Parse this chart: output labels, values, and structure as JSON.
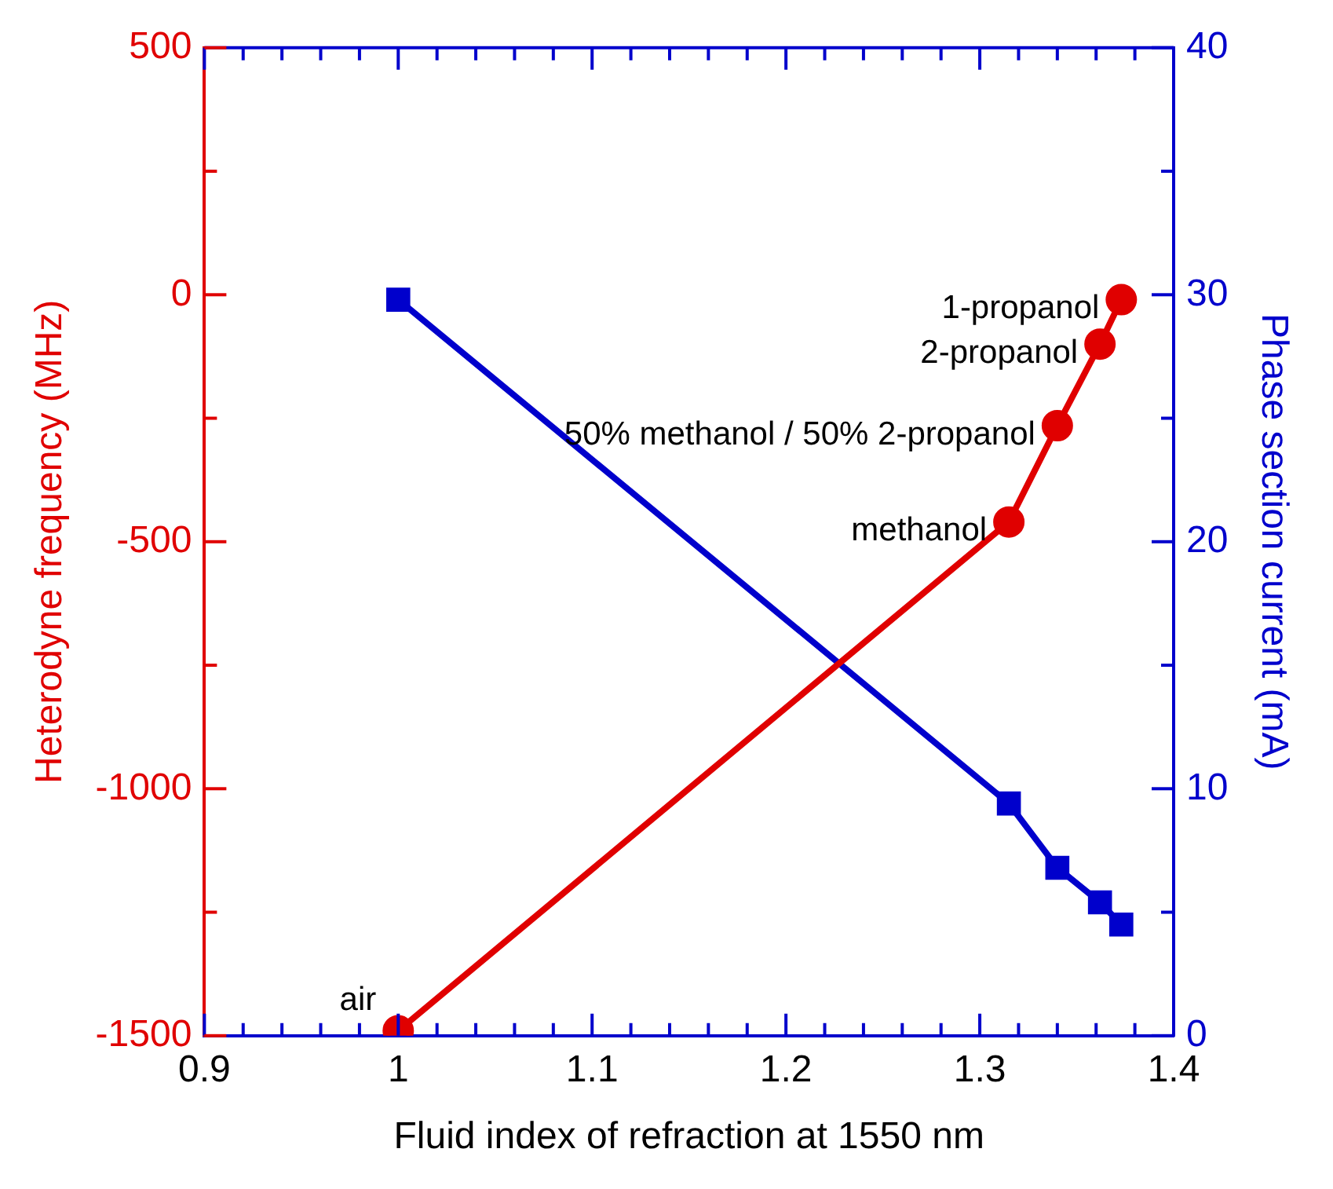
{
  "chart_data": {
    "type": "line",
    "xlabel": "Fluid index of refraction at 1550 nm",
    "ylabel": "Heterodyne frequency (MHz)",
    "y2label": "Phase section current (mA)",
    "x": [
      1.0,
      1.315,
      1.34,
      1.362,
      1.373
    ],
    "series": [
      {
        "name": null,
        "color": "#e00000",
        "values": [
          -1490,
          -460,
          -265,
          -100,
          -10
        ],
        "marker": "circle"
      },
      {
        "name": null,
        "color": "#0000cc",
        "values": [
          29.8,
          9.4,
          6.8,
          5.4,
          4.5
        ],
        "marker": "square",
        "axis": "y2"
      }
    ],
    "xlim": [
      0.9,
      1.4
    ],
    "xticks": [
      0.9,
      1,
      1.1,
      1.2,
      1.3,
      1.4,
      {
        "value": 0.92,
        "label": null
      },
      {
        "value": 0.94,
        "label": null
      },
      {
        "value": 0.96,
        "label": null
      },
      {
        "value": 0.98,
        "label": null
      },
      {
        "value": 1.02,
        "label": null
      },
      {
        "value": 1.04,
        "label": null
      },
      {
        "value": 1.06,
        "label": null
      },
      {
        "value": 1.08,
        "label": null
      },
      {
        "value": 1.12,
        "label": null
      },
      {
        "value": 1.14,
        "label": null
      },
      {
        "value": 1.16,
        "label": null
      },
      {
        "value": 1.18,
        "label": null
      },
      {
        "value": 1.22,
        "label": null
      },
      {
        "value": 1.24,
        "label": null
      },
      {
        "value": 1.26,
        "label": null
      },
      {
        "value": 1.28,
        "label": null
      },
      {
        "value": 1.32,
        "label": null
      },
      {
        "value": 1.34,
        "label": null
      },
      {
        "value": 1.36,
        "label": null
      },
      {
        "value": 1.38,
        "label": null
      }
    ],
    "ylim": [
      -1500,
      500
    ],
    "yticks": [
      -1500,
      -1000,
      -500,
      0,
      500,
      {
        "value": -1250,
        "label": null
      },
      {
        "value": -750,
        "label": null
      },
      {
        "value": -250,
        "label": null
      },
      {
        "value": 250,
        "label": null
      }
    ],
    "y2lim": [
      0,
      40
    ],
    "y2ticks": [
      0,
      10,
      20,
      30,
      40,
      {
        "value": 5,
        "label": null
      },
      {
        "value": 15,
        "label": null
      },
      {
        "value": 25,
        "label": null
      },
      {
        "value": 35,
        "label": null
      }
    ],
    "annotations": [
      {
        "text": "air",
        "x": 1.0,
        "y": -1490
      },
      {
        "text": "methanol",
        "x": 1.315,
        "y": -460
      },
      {
        "text": "50% methanol / 50% 2-propanol",
        "x": 1.34,
        "y": -265
      },
      {
        "text": "2-propanol",
        "x": 1.362,
        "y": -100
      },
      {
        "text": "1-propanol",
        "x": 1.373,
        "y": -10
      }
    ],
    "grid": false,
    "legend": false
  }
}
